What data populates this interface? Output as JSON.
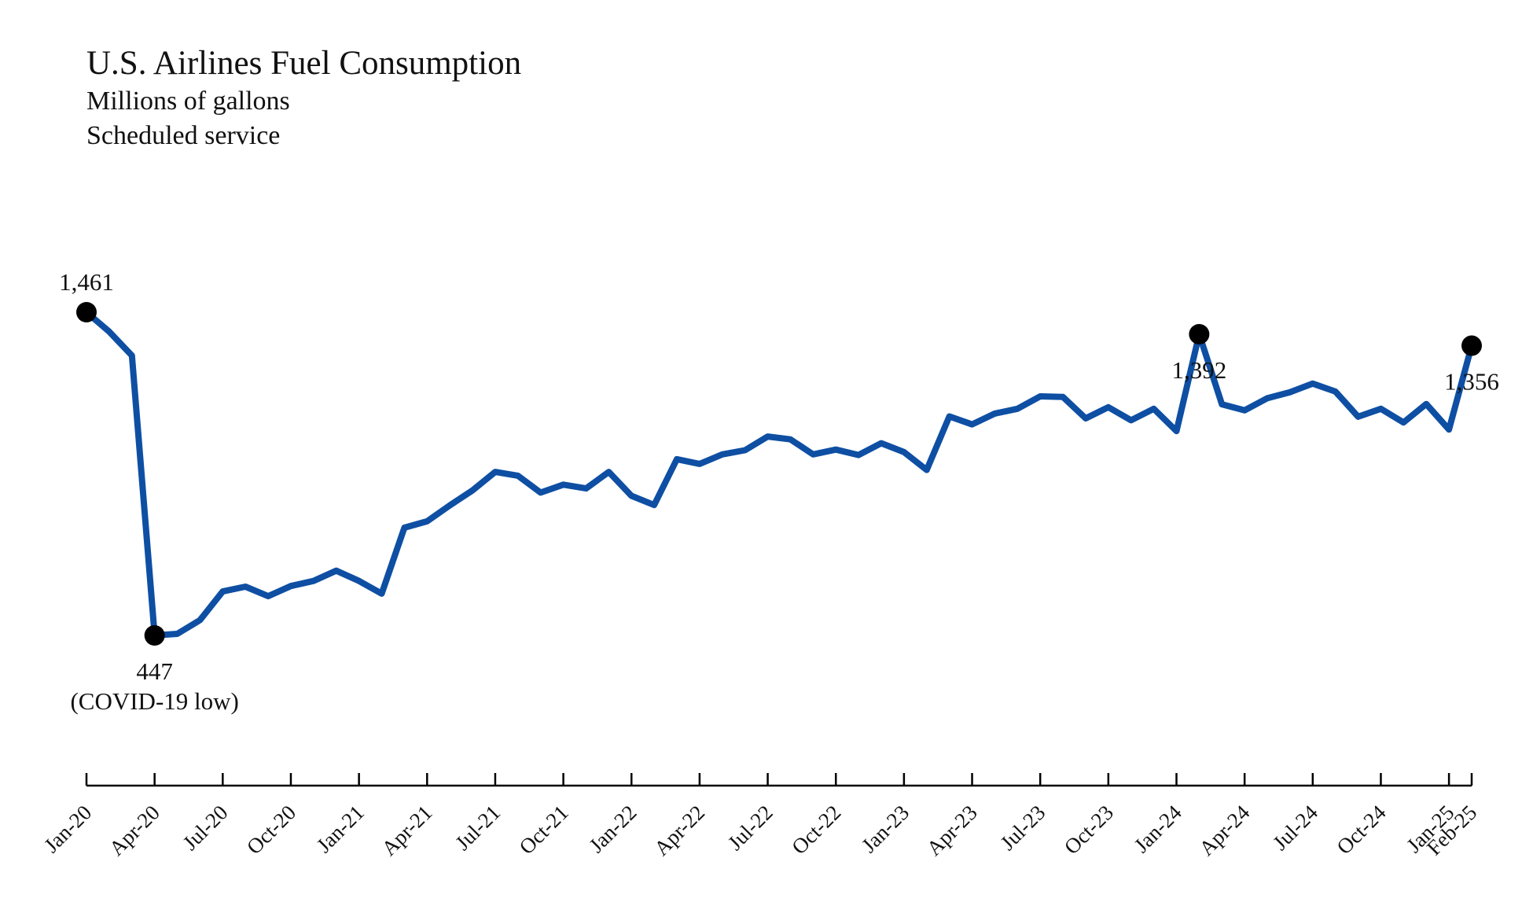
{
  "colors": {
    "line": "#0E4FA3",
    "marker": "#000000",
    "axis": "#000000"
  },
  "chart_data": {
    "type": "line",
    "title": "U.S. Airlines Fuel Consumption",
    "subtitle": [
      "Millions of gallons",
      "Scheduled service"
    ],
    "xlabel": "",
    "ylabel": "",
    "ylim": [
      300,
      1600
    ],
    "grid": false,
    "x_tick_labels": [
      "Jan-20",
      "Apr-20",
      "Jul-20",
      "Oct-20",
      "Jan-21",
      "Apr-21",
      "Jul-21",
      "Oct-21",
      "Jan-22",
      "Apr-22",
      "Jul-22",
      "Oct-22",
      "Jan-23",
      "Apr-23",
      "Jul-23",
      "Oct-23",
      "Jan-24",
      "Apr-24",
      "Jul-24",
      "Oct-24",
      "Jan-25",
      "Feb-25"
    ],
    "x_tick_months": [
      0,
      3,
      6,
      9,
      12,
      15,
      18,
      21,
      24,
      27,
      30,
      33,
      36,
      39,
      42,
      45,
      48,
      51,
      54,
      57,
      60,
      61
    ],
    "x": [
      "Jan-20",
      "Feb-20",
      "Mar-20",
      "Apr-20",
      "May-20",
      "Jun-20",
      "Jul-20",
      "Aug-20",
      "Sep-20",
      "Oct-20",
      "Nov-20",
      "Dec-20",
      "Jan-21",
      "Feb-21",
      "Mar-21",
      "Apr-21",
      "May-21",
      "Jun-21",
      "Jul-21",
      "Aug-21",
      "Sep-21",
      "Oct-21",
      "Nov-21",
      "Dec-21",
      "Jan-22",
      "Feb-22",
      "Mar-22",
      "Apr-22",
      "May-22",
      "Jun-22",
      "Jul-22",
      "Aug-22",
      "Sep-22",
      "Oct-22",
      "Nov-22",
      "Dec-22",
      "Jan-23",
      "Feb-23",
      "Mar-23",
      "Apr-23",
      "May-23",
      "Jun-23",
      "Jul-23",
      "Aug-23",
      "Sep-23",
      "Oct-23",
      "Nov-23",
      "Dec-23",
      "Jan-24",
      "Feb-24",
      "Mar-24",
      "Apr-24",
      "May-24",
      "Jun-24",
      "Jul-24",
      "Aug-24",
      "Sep-24",
      "Oct-24",
      "Nov-24",
      "Dec-24",
      "Jan-25",
      "Feb-25"
    ],
    "series": [
      {
        "values": [
          1461,
          1400,
          1325,
          447,
          452,
          495,
          585,
          600,
          570,
          602,
          618,
          650,
          618,
          578,
          785,
          805,
          855,
          902,
          960,
          948,
          895,
          920,
          908,
          960,
          885,
          856,
          1000,
          985,
          1015,
          1028,
          1071,
          1062,
          1015,
          1030,
          1013,
          1050,
          1022,
          966,
          1134,
          1109,
          1143,
          1158,
          1197,
          1195,
          1128,
          1163,
          1122,
          1158,
          1088,
          1392,
          1172,
          1153,
          1191,
          1210,
          1237,
          1212,
          1133,
          1158,
          1115,
          1173,
          1093,
          1356
        ]
      }
    ],
    "annotations": [
      {
        "index": 0,
        "lines": [
          "1,461"
        ],
        "position": "above"
      },
      {
        "index": 3,
        "lines": [
          "447",
          "(COVID-19 low)"
        ],
        "position": "below"
      },
      {
        "index": 49,
        "lines": [
          "1,392"
        ],
        "position": "below"
      },
      {
        "index": 61,
        "lines": [
          "1,356"
        ],
        "position": "below"
      }
    ]
  }
}
